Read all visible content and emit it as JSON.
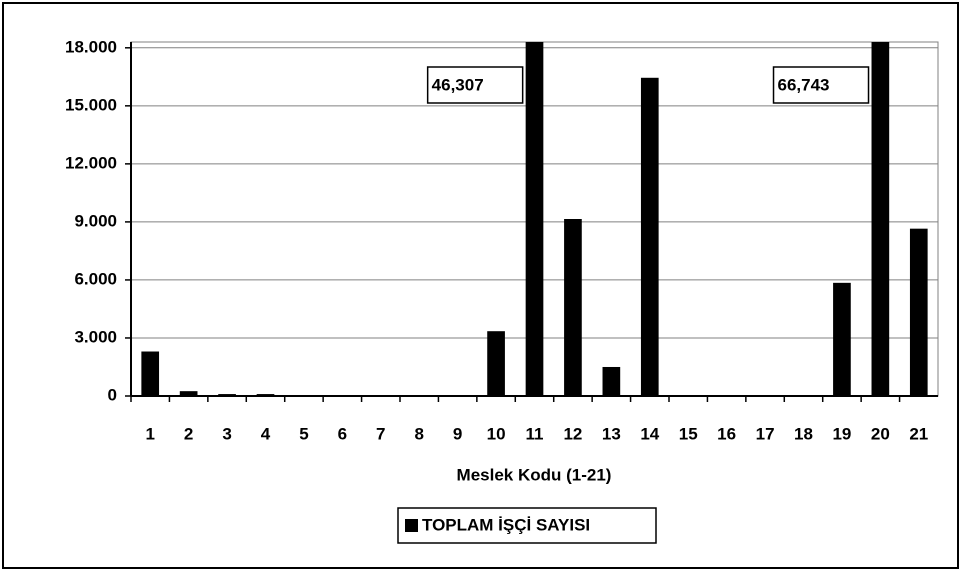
{
  "chart_data": {
    "type": "bar",
    "x_label": "Meslek Kodu (1-21)",
    "categories": [
      "1",
      "2",
      "3",
      "4",
      "5",
      "6",
      "7",
      "8",
      "9",
      "10",
      "11",
      "12",
      "13",
      "14",
      "15",
      "16",
      "17",
      "18",
      "19",
      "20",
      "21"
    ],
    "series": [
      {
        "name": "TOPLAM İŞÇİ SAYISI",
        "color": "#000000",
        "values": [
          2300,
          250,
          100,
          100,
          0,
          0,
          0,
          0,
          0,
          3350,
          46307,
          9150,
          1500,
          16450,
          0,
          0,
          0,
          0,
          5850,
          66743,
          8650
        ],
        "value_labels": [
          null,
          null,
          null,
          null,
          null,
          null,
          null,
          null,
          null,
          null,
          "46,307",
          null,
          null,
          null,
          null,
          null,
          null,
          null,
          null,
          "66,743",
          null
        ]
      }
    ],
    "ylim": [
      0,
      18300
    ],
    "yticks": [
      0,
      {
        "value": 3000,
        "label": "3.000"
      },
      {
        "value": 6000,
        "label": "6.000"
      },
      {
        "value": 9000,
        "label": "9.000"
      },
      {
        "value": 12000,
        "label": "12.000"
      },
      {
        "value": 15000,
        "label": "15.000"
      },
      {
        "value": 18000,
        "label": "18.000"
      }
    ],
    "grid": true,
    "legend": "bottom"
  }
}
